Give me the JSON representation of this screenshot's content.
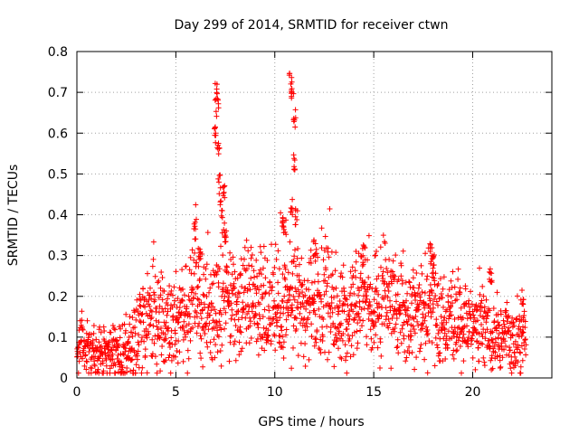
{
  "chart_data": {
    "type": "scatter",
    "title": "Day 299 of 2014, SRMTID for receiver ctwn",
    "xlabel": "GPS time / hours",
    "ylabel": "SRMTID / TECUs",
    "xlim": [
      0,
      24
    ],
    "ylim": [
      0,
      0.8
    ],
    "xticks": [
      0,
      5,
      10,
      15,
      20
    ],
    "yticks": [
      0,
      0.1,
      0.2,
      0.3,
      0.4,
      0.5,
      0.6,
      0.7,
      0.8
    ],
    "grid": true,
    "marker": "+",
    "color": "#ff0000",
    "series": [
      {
        "name": "SRMTID",
        "profile": [
          [
            0.0,
            0.07
          ],
          [
            0.5,
            0.07
          ],
          [
            1.0,
            0.06
          ],
          [
            1.5,
            0.055
          ],
          [
            2.0,
            0.06
          ],
          [
            2.5,
            0.07
          ],
          [
            3.0,
            0.09
          ],
          [
            3.5,
            0.14
          ],
          [
            4.0,
            0.15
          ],
          [
            4.5,
            0.12
          ],
          [
            5.0,
            0.12
          ],
          [
            5.5,
            0.15
          ],
          [
            6.0,
            0.22
          ],
          [
            6.5,
            0.16
          ],
          [
            7.0,
            0.17
          ],
          [
            7.5,
            0.2
          ],
          [
            8.0,
            0.17
          ],
          [
            8.5,
            0.2
          ],
          [
            9.0,
            0.16
          ],
          [
            9.5,
            0.17
          ],
          [
            10.0,
            0.18
          ],
          [
            10.5,
            0.17
          ],
          [
            11.0,
            0.19
          ],
          [
            11.5,
            0.18
          ],
          [
            12.0,
            0.19
          ],
          [
            12.5,
            0.19
          ],
          [
            13.0,
            0.17
          ],
          [
            13.5,
            0.15
          ],
          [
            14.0,
            0.16
          ],
          [
            14.5,
            0.2
          ],
          [
            15.0,
            0.17
          ],
          [
            15.5,
            0.19
          ],
          [
            16.0,
            0.18
          ],
          [
            16.5,
            0.16
          ],
          [
            17.0,
            0.15
          ],
          [
            17.5,
            0.17
          ],
          [
            18.0,
            0.18
          ],
          [
            18.5,
            0.14
          ],
          [
            19.0,
            0.14
          ],
          [
            19.5,
            0.15
          ],
          [
            20.0,
            0.11
          ],
          [
            20.5,
            0.13
          ],
          [
            21.0,
            0.1
          ],
          [
            21.5,
            0.09
          ],
          [
            22.0,
            0.1
          ],
          [
            22.5,
            0.1
          ],
          [
            22.7,
            0.09
          ]
        ],
        "peaks": [
          [
            6.0,
            0.39
          ],
          [
            6.2,
            0.32
          ],
          [
            7.05,
            0.73
          ],
          [
            7.1,
            0.69
          ],
          [
            7.0,
            0.62
          ],
          [
            7.15,
            0.58
          ],
          [
            7.2,
            0.5
          ],
          [
            7.4,
            0.49
          ],
          [
            7.3,
            0.44
          ],
          [
            7.5,
            0.38
          ],
          [
            10.35,
            0.42
          ],
          [
            10.5,
            0.4
          ],
          [
            10.8,
            0.75
          ],
          [
            10.9,
            0.72
          ],
          [
            11.0,
            0.66
          ],
          [
            10.95,
            0.55
          ],
          [
            10.85,
            0.45
          ],
          [
            11.1,
            0.42
          ],
          [
            14.5,
            0.33
          ],
          [
            17.9,
            0.33
          ],
          [
            18.0,
            0.3
          ],
          [
            20.9,
            0.27
          ],
          [
            22.5,
            0.22
          ],
          [
            12.0,
            0.34
          ]
        ]
      }
    ]
  }
}
